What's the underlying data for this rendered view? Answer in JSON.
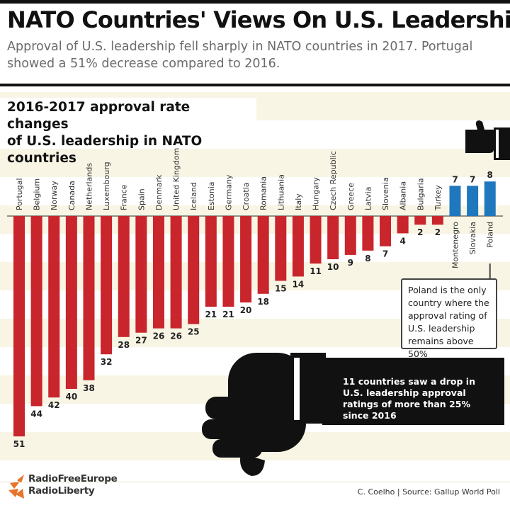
{
  "header": {
    "title": "NATO Countries' Views On U.S. Leadership",
    "subtitle": "Approval of U.S. leadership fell sharply in NATO countries in 2017. Portugal showed a 51% decrease compared to 2016."
  },
  "chart_heading": {
    "line1": "2016-2017 approval rate changes",
    "line2": "of U.S. leadership in NATO countries"
  },
  "chart_data": {
    "type": "bar",
    "title": "2016-2017 approval rate changes of U.S. leadership in NATO countries",
    "categories": [
      "Portugal",
      "Belgium",
      "Norway",
      "Canada",
      "Netherlands",
      "Luxembourg",
      "France",
      "Spain",
      "Denmark",
      "United Kingdom",
      "Iceland",
      "Estonia",
      "Germany",
      "Croatia",
      "Romania",
      "Lithuania",
      "Italy",
      "Hungary",
      "Czech Republic",
      "Greece",
      "Latvia",
      "Slovenia",
      "Albania",
      "Bulgaria",
      "Turkey",
      "Montenegro",
      "Slovakia",
      "Poland"
    ],
    "values": [
      -51,
      -44,
      -42,
      -40,
      -38,
      -32,
      -28,
      -27,
      -26,
      -26,
      -25,
      -21,
      -21,
      -20,
      -18,
      -15,
      -14,
      -11,
      -10,
      -9,
      -8,
      -7,
      -4,
      -2,
      -2,
      7,
      7,
      8
    ],
    "labels": [
      "51",
      "44",
      "42",
      "40",
      "38",
      "32",
      "28",
      "27",
      "26",
      "26",
      "25",
      "21",
      "21",
      "20",
      "18",
      "15",
      "14",
      "11",
      "10",
      "9",
      "8",
      "7",
      "4",
      "2",
      "2",
      "7",
      "7",
      "8"
    ],
    "colors": {
      "decrease": "#c9252c",
      "increase": "#1f78bd"
    }
  },
  "callout_poland": "Poland is the only country where the approval rating of U.S. leadership remains above 50%",
  "banner": "11 countries saw a drop in U.S. leadership approval ratings of more than 25% since 2016",
  "footer": {
    "logo_line1": "RadioFreeEurope",
    "logo_line2": "RadioLiberty",
    "credit": "C. Coelho | Source: Gallup World Poll"
  },
  "icons": {
    "thumbs_up": "thumbs-up-icon",
    "thumbs_down": "thumbs-down-icon",
    "logo": "rferl-logo-icon"
  }
}
